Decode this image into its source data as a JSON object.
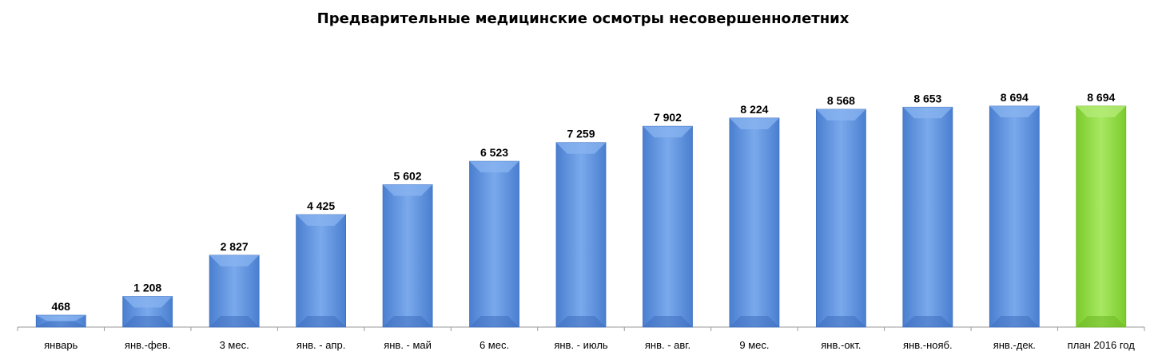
{
  "chart_data": {
    "type": "bar",
    "title": "Предварительные медицинские осмотры несовершеннолетних",
    "categories": [
      "январь",
      "янв.-фев.",
      "3 мес.",
      "янв. - апр.",
      "янв. - май",
      "6 мес.",
      "янв. - июль",
      "янв. - авг.",
      "9 мес.",
      "янв.-окт.",
      "янв.-нояб.",
      "янв.-дек.",
      "план 2016 год"
    ],
    "values": [
      468,
      1208,
      2827,
      4425,
      5602,
      6523,
      7259,
      7902,
      8224,
      8568,
      8653,
      8694,
      8694
    ],
    "value_labels": [
      "468",
      "1 208",
      "2 827",
      "4 425",
      "5 602",
      "6 523",
      "7 259",
      "7 902",
      "8 224",
      "8 568",
      "8 653",
      "8 694",
      "8 694"
    ],
    "ylim": [
      0,
      10000
    ],
    "grid": false,
    "legend": "none",
    "colors": {
      "bar": "#5b8fdc",
      "bar_light": "#8ab4f0",
      "bar_dark": "#3f6fbf",
      "plan_bar": "#8fd83f",
      "plan_bar_light": "#b6ec7a",
      "plan_bar_dark": "#6cb824",
      "axis": "#9a9a9a"
    }
  }
}
